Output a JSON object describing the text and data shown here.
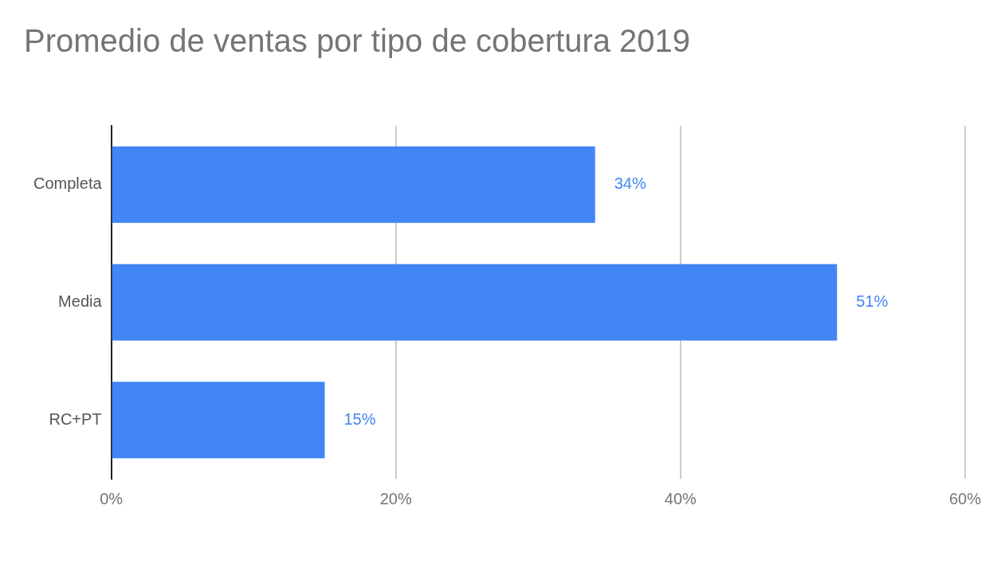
{
  "chart_data": {
    "type": "bar",
    "orientation": "horizontal",
    "title": "Promedio de ventas por tipo de cobertura 2019",
    "categories": [
      "Completa",
      "Media",
      "RC+PT"
    ],
    "values": [
      34,
      51,
      15
    ],
    "color": "#4285f4",
    "value_labels": [
      "34%",
      "51%",
      "15%"
    ],
    "xlim": [
      0,
      60
    ],
    "xticks": [
      {
        "value": 0,
        "label": "0%"
      },
      {
        "value": 20,
        "label": "20%"
      },
      {
        "value": 40,
        "label": "40%"
      },
      {
        "value": 60,
        "label": "60%"
      }
    ],
    "grid": "x",
    "legend": false
  }
}
